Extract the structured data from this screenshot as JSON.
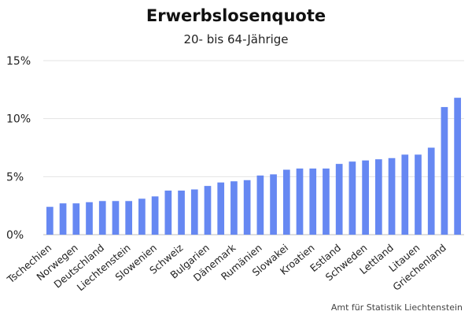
{
  "header": {
    "title": "Erwerbslosenquote",
    "subtitle": "20- bis 64-Jährige"
  },
  "footer": {
    "source": "Amt für Statistik Liechtenstein"
  },
  "colors": {
    "bar": "#6688f2",
    "grid": "#e3e3e3",
    "text": "#222222"
  },
  "chart_data": {
    "type": "bar",
    "title": "Erwerbslosenquote",
    "subtitle": "20- bis 64-Jährige",
    "xlabel": "",
    "ylabel": "",
    "ylim": [
      0,
      15
    ],
    "yticks": [
      "0%",
      "5%",
      "10%",
      "15%"
    ],
    "grid": true,
    "legend": "none",
    "categories": [
      "Tschechien",
      "",
      "Norwegen",
      "",
      "Deutschland",
      "",
      "Liechtenstein",
      "",
      "Slowenien",
      "",
      "Schweiz",
      "",
      "Bulgarien",
      "",
      "Dänemark",
      "",
      "Rumänien",
      "",
      "Slowakei",
      "",
      "Kroatien",
      "",
      "Estland",
      "",
      "Schweden",
      "",
      "Lettland",
      "",
      "Litauen",
      "",
      "Griechenland",
      ""
    ],
    "values": [
      2.4,
      2.7,
      2.7,
      2.8,
      2.9,
      2.9,
      2.9,
      3.1,
      3.3,
      3.8,
      3.8,
      3.9,
      4.2,
      4.5,
      4.6,
      4.7,
      5.1,
      5.2,
      5.6,
      5.7,
      5.7,
      5.7,
      6.1,
      6.3,
      6.4,
      6.5,
      6.6,
      6.9,
      6.9,
      7.5,
      11.0,
      11.8
    ]
  }
}
